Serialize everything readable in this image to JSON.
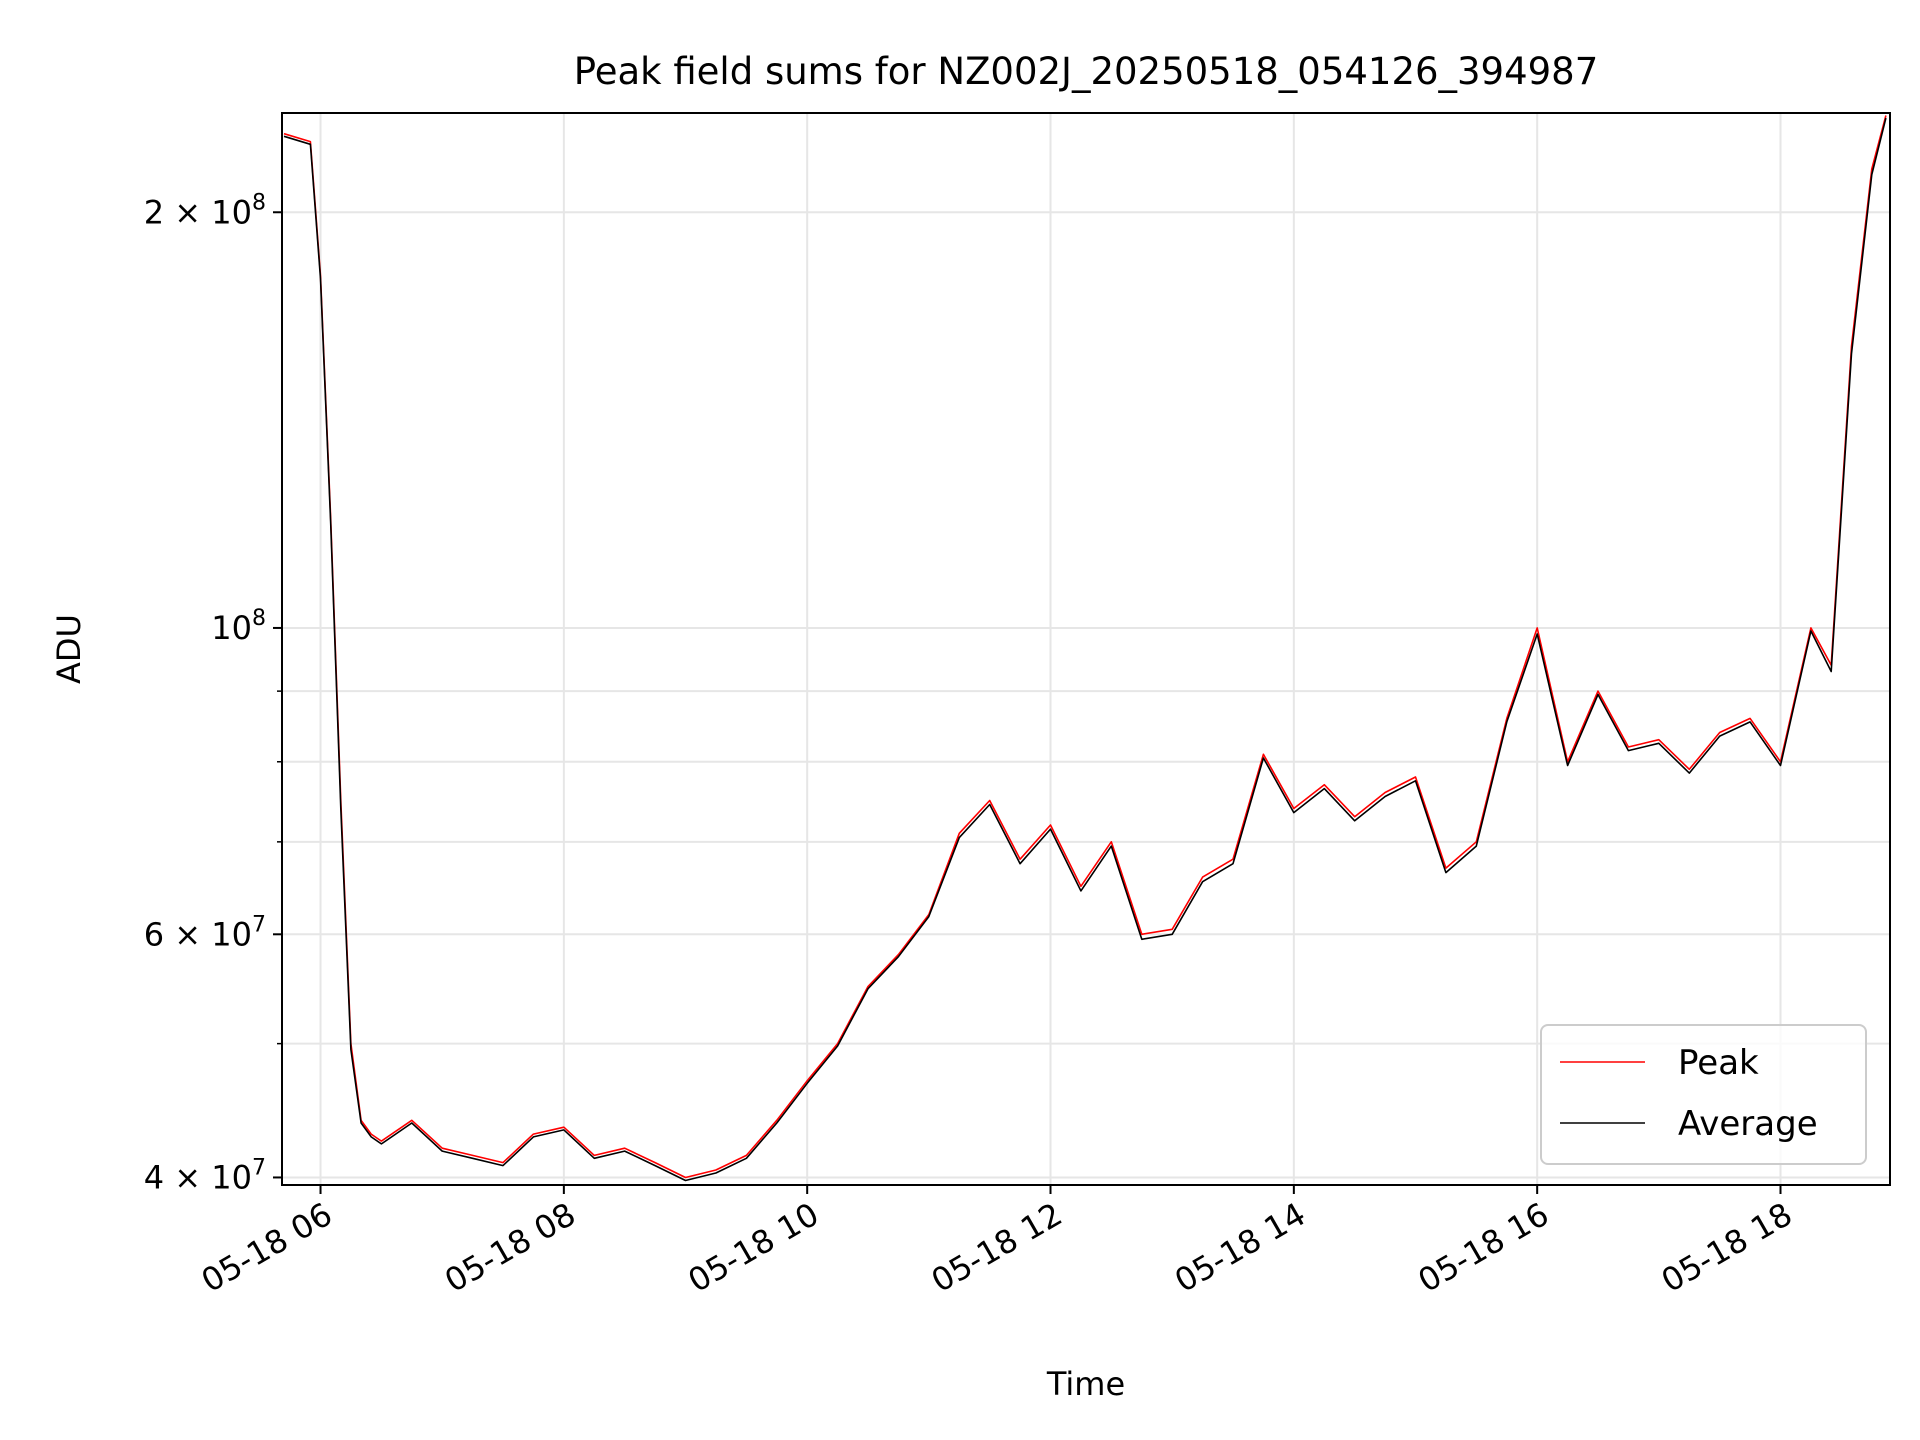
{
  "chart_data": {
    "type": "line",
    "title": "Peak field sums for NZ002J_20250518_054126_394987",
    "xlabel": "Time",
    "ylabel": "ADU",
    "x_axis": {
      "type": "datetime",
      "range": [
        "2025-05-18 05:41",
        "2025-05-18 18:54"
      ],
      "ticks": [
        {
          "t": "2025-05-18 06:00",
          "label": "05-18 06"
        },
        {
          "t": "2025-05-18 08:00",
          "label": "05-18 08"
        },
        {
          "t": "2025-05-18 10:00",
          "label": "05-18 10"
        },
        {
          "t": "2025-05-18 12:00",
          "label": "05-18 12"
        },
        {
          "t": "2025-05-18 14:00",
          "label": "05-18 14"
        },
        {
          "t": "2025-05-18 16:00",
          "label": "05-18 16"
        },
        {
          "t": "2025-05-18 18:00",
          "label": "05-18 18"
        }
      ]
    },
    "y_axis": {
      "scale": "log",
      "range": [
        39500000,
        236000000
      ],
      "major_ticks": [
        {
          "value": 40000000,
          "label": "4 × 10^7",
          "mantissa": "4",
          "exp": "7"
        },
        {
          "value": 60000000,
          "label": "6 × 10^7",
          "mantissa": "6",
          "exp": "7"
        },
        {
          "value": 100000000,
          "label": "10^8",
          "mantissa": "",
          "exp": "8"
        },
        {
          "value": 200000000,
          "label": "2 × 10^8",
          "mantissa": "2",
          "exp": "8"
        }
      ],
      "minor_ticks": [
        50000000,
        70000000,
        80000000,
        90000000
      ]
    },
    "grid": true,
    "legend": {
      "position": "lower-right",
      "entries": [
        {
          "label": "Peak",
          "color": "#ff0000"
        },
        {
          "label": "Average",
          "color": "#000000"
        }
      ]
    },
    "series": [
      {
        "name": "Peak",
        "color": "#ff0000",
        "x": [
          "2025-05-18 05:42",
          "2025-05-18 05:55",
          "2025-05-18 06:00",
          "2025-05-18 06:05",
          "2025-05-18 06:10",
          "2025-05-18 06:15",
          "2025-05-18 06:20",
          "2025-05-18 06:25",
          "2025-05-18 06:30",
          "2025-05-18 06:45",
          "2025-05-18 07:00",
          "2025-05-18 07:15",
          "2025-05-18 07:30",
          "2025-05-18 07:45",
          "2025-05-18 08:00",
          "2025-05-18 08:15",
          "2025-05-18 08:30",
          "2025-05-18 08:45",
          "2025-05-18 09:00",
          "2025-05-18 09:15",
          "2025-05-18 09:30",
          "2025-05-18 09:45",
          "2025-05-18 10:00",
          "2025-05-18 10:15",
          "2025-05-18 10:30",
          "2025-05-18 10:45",
          "2025-05-18 11:00",
          "2025-05-18 11:15",
          "2025-05-18 11:30",
          "2025-05-18 11:45",
          "2025-05-18 12:00",
          "2025-05-18 12:15",
          "2025-05-18 12:30",
          "2025-05-18 12:45",
          "2025-05-18 13:00",
          "2025-05-18 13:15",
          "2025-05-18 13:30",
          "2025-05-18 13:45",
          "2025-05-18 14:00",
          "2025-05-18 14:15",
          "2025-05-18 14:30",
          "2025-05-18 14:45",
          "2025-05-18 15:00",
          "2025-05-18 15:15",
          "2025-05-18 15:30",
          "2025-05-18 15:45",
          "2025-05-18 16:00",
          "2025-05-18 16:15",
          "2025-05-18 16:30",
          "2025-05-18 16:45",
          "2025-05-18 17:00",
          "2025-05-18 17:15",
          "2025-05-18 17:30",
          "2025-05-18 17:45",
          "2025-05-18 18:00",
          "2025-05-18 18:15",
          "2025-05-18 18:25",
          "2025-05-18 18:35",
          "2025-05-18 18:45",
          "2025-05-18 18:52"
        ],
        "values": [
          228000000,
          225000000,
          180000000,
          120000000,
          75000000,
          50000000,
          44000000,
          43000000,
          42500000,
          44000000,
          42000000,
          41500000,
          41000000,
          43000000,
          43500000,
          41500000,
          42000000,
          41000000,
          40000000,
          40500000,
          41500000,
          44000000,
          47000000,
          50000000,
          55000000,
          58000000,
          62000000,
          71000000,
          75000000,
          68000000,
          72000000,
          65000000,
          70000000,
          60000000,
          60500000,
          66000000,
          68000000,
          81000000,
          74000000,
          77000000,
          73000000,
          76000000,
          78000000,
          67000000,
          70000000,
          86000000,
          100000000,
          80000000,
          90000000,
          82000000,
          83000000,
          79000000,
          84000000,
          86000000,
          80000000,
          100000000,
          94000000,
          160000000,
          215000000,
          235000000
        ]
      },
      {
        "name": "Average",
        "color": "#000000",
        "x": [
          "2025-05-18 05:42",
          "2025-05-18 05:55",
          "2025-05-18 06:00",
          "2025-05-18 06:05",
          "2025-05-18 06:10",
          "2025-05-18 06:15",
          "2025-05-18 06:20",
          "2025-05-18 06:25",
          "2025-05-18 06:30",
          "2025-05-18 06:45",
          "2025-05-18 07:00",
          "2025-05-18 07:15",
          "2025-05-18 07:30",
          "2025-05-18 07:45",
          "2025-05-18 08:00",
          "2025-05-18 08:15",
          "2025-05-18 08:30",
          "2025-05-18 08:45",
          "2025-05-18 09:00",
          "2025-05-18 09:15",
          "2025-05-18 09:30",
          "2025-05-18 09:45",
          "2025-05-18 10:00",
          "2025-05-18 10:15",
          "2025-05-18 10:30",
          "2025-05-18 10:45",
          "2025-05-18 11:00",
          "2025-05-18 11:15",
          "2025-05-18 11:30",
          "2025-05-18 11:45",
          "2025-05-18 12:00",
          "2025-05-18 12:15",
          "2025-05-18 12:30",
          "2025-05-18 12:45",
          "2025-05-18 13:00",
          "2025-05-18 13:15",
          "2025-05-18 13:30",
          "2025-05-18 13:45",
          "2025-05-18 14:00",
          "2025-05-18 14:15",
          "2025-05-18 14:30",
          "2025-05-18 14:45",
          "2025-05-18 15:00",
          "2025-05-18 15:15",
          "2025-05-18 15:30",
          "2025-05-18 15:45",
          "2025-05-18 16:00",
          "2025-05-18 16:15",
          "2025-05-18 16:30",
          "2025-05-18 16:45",
          "2025-05-18 17:00",
          "2025-05-18 17:15",
          "2025-05-18 17:30",
          "2025-05-18 17:45",
          "2025-05-18 18:00",
          "2025-05-18 18:15",
          "2025-05-18 18:25",
          "2025-05-18 18:35",
          "2025-05-18 18:45",
          "2025-05-18 18:52"
        ],
        "values": [
          227000000,
          224000000,
          179000000,
          119000000,
          74000000,
          49500000,
          43800000,
          42800000,
          42300000,
          43800000,
          41800000,
          41300000,
          40800000,
          42800000,
          43300000,
          41300000,
          41800000,
          40800000,
          39800000,
          40300000,
          41300000,
          43800000,
          46800000,
          49800000,
          54800000,
          57800000,
          61800000,
          70500000,
          74500000,
          67500000,
          71500000,
          64500000,
          69500000,
          59500000,
          60000000,
          65500000,
          67500000,
          80500000,
          73500000,
          76500000,
          72500000,
          75500000,
          77500000,
          66500000,
          69500000,
          85500000,
          99000000,
          79500000,
          89500000,
          81500000,
          82500000,
          78500000,
          83500000,
          85500000,
          79500000,
          99500000,
          93000000,
          158000000,
          213000000,
          234000000
        ]
      }
    ]
  }
}
